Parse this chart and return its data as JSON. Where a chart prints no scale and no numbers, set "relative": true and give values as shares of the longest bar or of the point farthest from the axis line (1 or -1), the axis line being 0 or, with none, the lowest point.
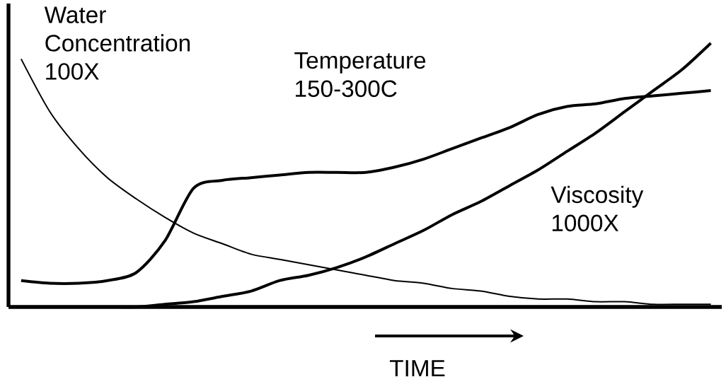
{
  "chart_data": {
    "type": "line",
    "relative": true,
    "xlabel": "TIME",
    "categories": [
      null,
      null,
      null,
      null,
      null,
      null,
      null,
      null,
      null,
      null,
      null,
      null,
      null,
      null,
      null,
      null,
      null,
      null,
      null,
      null,
      null,
      null,
      null,
      null,
      null
    ],
    "series": [
      {
        "name": "Water Concentration 100X",
        "color": "#000000",
        "values": [
          0.94,
          0.74,
          0.6,
          0.49,
          0.41,
          0.34,
          0.28,
          0.24,
          0.2,
          0.18,
          0.16,
          0.14,
          0.12,
          0.1,
          0.09,
          0.07,
          0.06,
          0.04,
          0.03,
          0.03,
          0.02,
          0.02,
          0.01,
          0.01,
          0.01
        ]
      },
      {
        "name": "Temperature 150-300C",
        "color": "#000000",
        "values": [
          0.1,
          0.09,
          0.09,
          0.1,
          0.13,
          0.25,
          0.45,
          0.48,
          0.49,
          0.5,
          0.51,
          0.51,
          0.51,
          0.53,
          0.56,
          0.6,
          0.64,
          0.68,
          0.73,
          0.76,
          0.77,
          0.79,
          0.8,
          0.81,
          0.82
        ]
      },
      {
        "name": "Viscosity 1000X",
        "color": "#000000",
        "values": [
          0.0,
          0.0,
          0.0,
          0.0,
          0.0,
          0.01,
          0.02,
          0.04,
          0.06,
          0.1,
          0.12,
          0.15,
          0.19,
          0.24,
          0.29,
          0.35,
          0.4,
          0.46,
          0.52,
          0.59,
          0.66,
          0.74,
          0.82,
          0.9,
          1.0
        ]
      }
    ]
  }
}
